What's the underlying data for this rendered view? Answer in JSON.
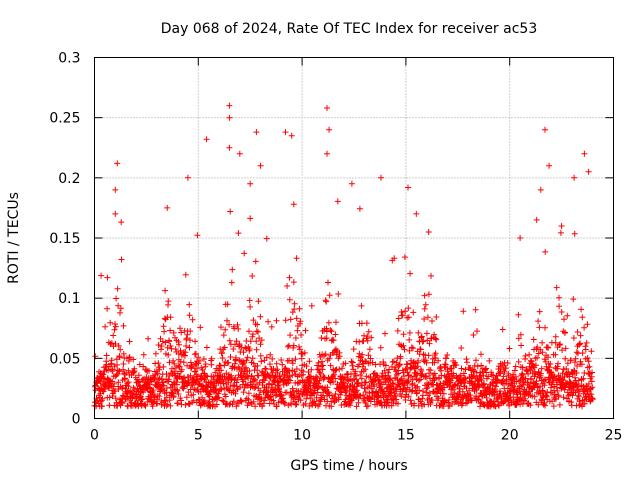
{
  "chart_data": {
    "type": "scatter",
    "title": "Day 068 of 2024, Rate Of TEC Index for receiver ac53",
    "xlabel": "GPS time / hours",
    "ylabel": "ROTI / TECUs",
    "xlim": [
      0,
      25
    ],
    "ylim": [
      0,
      0.3
    ],
    "xticks": [
      0,
      5,
      10,
      15,
      20,
      25
    ],
    "xtick_labels": [
      "0",
      "5",
      "10",
      "15",
      "20",
      "25"
    ],
    "yticks": [
      0,
      0.05,
      0.1,
      0.15,
      0.2,
      0.25,
      0.3
    ],
    "ytick_labels": [
      "0",
      "0.05",
      "0.1",
      "0.15",
      "0.2",
      "0.25",
      "0.3"
    ],
    "grid": true,
    "marker": "+",
    "color": "#ff0000",
    "x_range_of_data": [
      0,
      24
    ],
    "dense_band_y": [
      0.01,
      0.05
    ],
    "notable_points": [
      {
        "x": 1.1,
        "y": 0.212
      },
      {
        "x": 1.0,
        "y": 0.19
      },
      {
        "x": 1.0,
        "y": 0.17
      },
      {
        "x": 3.5,
        "y": 0.175
      },
      {
        "x": 4.5,
        "y": 0.2
      },
      {
        "x": 5.4,
        "y": 0.232
      },
      {
        "x": 6.5,
        "y": 0.26
      },
      {
        "x": 6.5,
        "y": 0.25
      },
      {
        "x": 6.5,
        "y": 0.225
      },
      {
        "x": 7.0,
        "y": 0.22
      },
      {
        "x": 7.5,
        "y": 0.195
      },
      {
        "x": 7.8,
        "y": 0.238
      },
      {
        "x": 8.0,
        "y": 0.21
      },
      {
        "x": 9.2,
        "y": 0.238
      },
      {
        "x": 9.5,
        "y": 0.235
      },
      {
        "x": 9.6,
        "y": 0.178
      },
      {
        "x": 11.2,
        "y": 0.258
      },
      {
        "x": 11.3,
        "y": 0.24
      },
      {
        "x": 11.2,
        "y": 0.22
      },
      {
        "x": 12.4,
        "y": 0.195
      },
      {
        "x": 13.8,
        "y": 0.2
      },
      {
        "x": 15.1,
        "y": 0.192
      },
      {
        "x": 15.5,
        "y": 0.17
      },
      {
        "x": 16.1,
        "y": 0.155
      },
      {
        "x": 20.5,
        "y": 0.15
      },
      {
        "x": 21.3,
        "y": 0.165
      },
      {
        "x": 21.5,
        "y": 0.19
      },
      {
        "x": 21.7,
        "y": 0.24
      },
      {
        "x": 21.9,
        "y": 0.21
      },
      {
        "x": 22.5,
        "y": 0.16
      },
      {
        "x": 23.1,
        "y": 0.2
      },
      {
        "x": 23.6,
        "y": 0.22
      },
      {
        "x": 23.8,
        "y": 0.205
      }
    ],
    "activity_peaks": [
      {
        "x": 1.0,
        "level": 0.08
      },
      {
        "x": 3.5,
        "level": 0.06
      },
      {
        "x": 4.5,
        "level": 0.07
      },
      {
        "x": 6.6,
        "level": 0.1
      },
      {
        "x": 7.6,
        "level": 0.09
      },
      {
        "x": 9.6,
        "level": 0.08
      },
      {
        "x": 11.3,
        "level": 0.08
      },
      {
        "x": 13.0,
        "level": 0.06
      },
      {
        "x": 15.0,
        "level": 0.07
      },
      {
        "x": 16.0,
        "level": 0.07
      },
      {
        "x": 21.5,
        "level": 0.06
      },
      {
        "x": 22.5,
        "level": 0.06
      },
      {
        "x": 23.5,
        "level": 0.06
      }
    ]
  }
}
